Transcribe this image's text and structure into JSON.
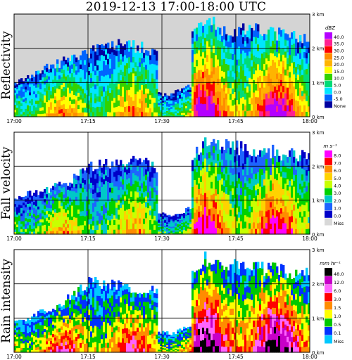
{
  "title": "2019-12-13   17:00-18:00 UTC",
  "x_tick_labels": [
    "17:00",
    "17:15",
    "17:30",
    "17:45",
    "18:00"
  ],
  "height_tick_labels": [
    "0 km",
    "1 km",
    "2 km",
    "3 km"
  ],
  "chart_data": [
    {
      "type": "heatmap",
      "panel": "reflectivity",
      "ylabel": "Reflectivity",
      "x_range": [
        "17:00",
        "18:00"
      ],
      "ylim_km": [
        0,
        3
      ],
      "legend_unit": "dBZ",
      "legend_labels": [
        "40.0",
        "35.0",
        "30.0",
        "25.0",
        "20.0",
        "15.0",
        "10.0",
        "5.0",
        "0.0",
        "-5.0",
        "None"
      ],
      "colors": [
        "#b400ff",
        "#ff2090",
        "#ff0000",
        "#ff8c00",
        "#ffb400",
        "#ffff00",
        "#32d200",
        "#00dc78",
        "#00e6ff",
        "#0064ff",
        "#0000a0",
        "#d8d8d8"
      ],
      "echo_tops_km": [
        {
          "t": "17:00",
          "top": 1.0
        },
        {
          "t": "17:07",
          "top": 1.5
        },
        {
          "t": "17:14",
          "top": 1.9
        },
        {
          "t": "17:22",
          "top": 2.2
        },
        {
          "t": "17:31",
          "top": 1.9
        },
        {
          "t": "17:37",
          "top": 2.9
        },
        {
          "t": "17:44",
          "top": 2.6
        },
        {
          "t": "17:50",
          "top": 2.6
        },
        {
          "t": "17:58",
          "top": 2.4
        }
      ]
    },
    {
      "type": "heatmap",
      "panel": "fall_velocity",
      "ylabel": "Fall velocity",
      "x_range": [
        "17:00",
        "18:00"
      ],
      "ylim_km": [
        0,
        3
      ],
      "legend_unit": "m s⁻¹",
      "legend_labels": [
        "8.0",
        "7.0",
        "6.0",
        "5.0",
        "4.0",
        "3.0",
        "2.0",
        "1.0",
        "0.0",
        "Miss"
      ],
      "colors": [
        "#ff00ff",
        "#ff0000",
        "#ff8c00",
        "#ffd200",
        "#c8ff00",
        "#00d200",
        "#00c8c8",
        "#1e64ff",
        "#0000c8",
        "#d8d8d8"
      ],
      "echo_tops_km": [
        {
          "t": "17:00",
          "top": 1.1
        },
        {
          "t": "17:10",
          "top": 1.5
        },
        {
          "t": "17:16",
          "top": 2.1
        },
        {
          "t": "17:26",
          "top": 2.2
        },
        {
          "t": "17:32",
          "top": 1.6
        },
        {
          "t": "17:38",
          "top": 2.7
        },
        {
          "t": "17:47",
          "top": 2.6
        },
        {
          "t": "17:57",
          "top": 2.4
        }
      ]
    },
    {
      "type": "heatmap",
      "panel": "rain_intensity",
      "ylabel": "Rain intensity",
      "x_range": [
        "17:00",
        "18:00"
      ],
      "ylim_km": [
        0,
        3
      ],
      "legend_unit": "mm hr⁻¹",
      "legend_labels": [
        "48.0",
        "12.0",
        "6.0",
        "3.0",
        "1.5",
        "1.0",
        "0.5",
        "0.1",
        "Miss"
      ],
      "colors": [
        "#000000",
        "#c800c8",
        "#ff64ff",
        "#ff0000",
        "#ff8c00",
        "#ffff00",
        "#00c800",
        "#0032ff",
        "#00c8ff",
        "#d8d8d8"
      ],
      "echo_tops_km": [
        {
          "t": "17:00",
          "top": 0.9
        },
        {
          "t": "17:09",
          "top": 1.4
        },
        {
          "t": "17:15",
          "top": 2.1
        },
        {
          "t": "17:27",
          "top": 1.9
        },
        {
          "t": "17:32",
          "top": 1.6
        },
        {
          "t": "17:38",
          "top": 2.8
        },
        {
          "t": "17:47",
          "top": 2.6
        },
        {
          "t": "17:57",
          "top": 2.4
        }
      ]
    }
  ]
}
